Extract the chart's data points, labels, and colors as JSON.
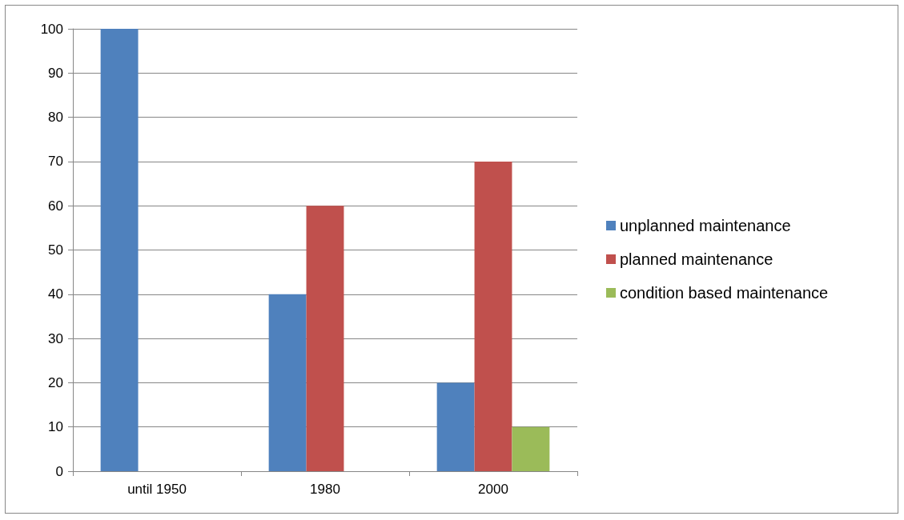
{
  "chart_data": {
    "type": "bar",
    "categories": [
      "until 1950",
      "1980",
      "2000"
    ],
    "series": [
      {
        "name": "unplanned maintenance",
        "color": "#4f81bd",
        "values": [
          100,
          40,
          20
        ]
      },
      {
        "name": "planned maintenance",
        "color": "#c0504d",
        "values": [
          0,
          60,
          70
        ]
      },
      {
        "name": "condition based maintenance",
        "color": "#9bbb59",
        "values": [
          0,
          0,
          10
        ]
      }
    ],
    "ylim": [
      0,
      100
    ],
    "yticks": [
      0,
      10,
      20,
      30,
      40,
      50,
      60,
      70,
      80,
      90,
      100
    ],
    "grid": "y",
    "legend": "right"
  }
}
